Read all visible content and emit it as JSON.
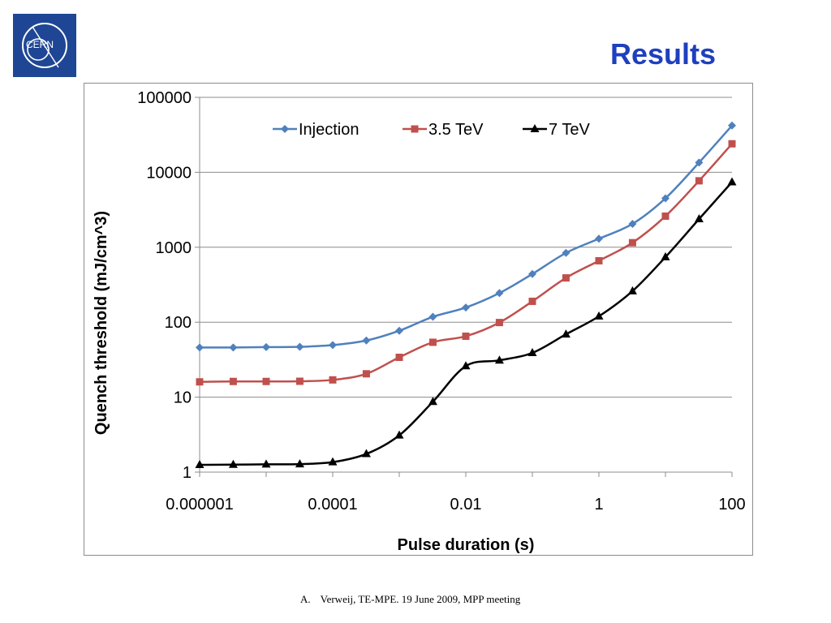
{
  "slide": {
    "title": "Results",
    "logo_text": "CERN",
    "footer_number": "A.",
    "footer_text": "Verweij, TE-MPE. 19 June 2009, MPP meeting"
  },
  "chart_data": {
    "type": "line",
    "xscale": "log",
    "yscale": "log",
    "xlim": [
      1e-06,
      100
    ],
    "ylim": [
      1,
      100000
    ],
    "xlabel": "Pulse duration (s)",
    "ylabel": "Quench threshold (mJ/cm^3)",
    "xticks": [
      "0.000001",
      "0.0001",
      "0.01",
      "1",
      "100"
    ],
    "yticks": [
      "1",
      "10",
      "100",
      "1000",
      "10000",
      "100000"
    ],
    "grid": "horizontal",
    "legend_position": "top",
    "x": [
      1e-06,
      3.2e-06,
      1e-05,
      3.2e-05,
      0.0001,
      0.00032,
      0.001,
      0.0032,
      0.01,
      0.032,
      0.1,
      0.32,
      1,
      3.2,
      10,
      32,
      100
    ],
    "series": [
      {
        "name": "Injection",
        "color": "#4f81bd",
        "marker": "diamond",
        "values": [
          46,
          46,
          46.5,
          47,
          49.5,
          57,
          77,
          118,
          157,
          245,
          440,
          840,
          1300,
          2050,
          4500,
          13500,
          42000
        ]
      },
      {
        "name": "3.5 TeV",
        "color": "#c0504d",
        "marker": "square",
        "values": [
          16,
          16.2,
          16.2,
          16.3,
          17,
          20.5,
          34,
          54,
          65,
          99,
          190,
          390,
          660,
          1150,
          2600,
          7700,
          24000
        ]
      },
      {
        "name": "7 TeV",
        "color": "#000000",
        "marker": "triangle",
        "values": [
          1.25,
          1.26,
          1.27,
          1.28,
          1.36,
          1.75,
          3.1,
          8.7,
          26,
          31,
          39,
          69,
          120,
          260,
          740,
          2380,
          7400
        ]
      }
    ]
  }
}
